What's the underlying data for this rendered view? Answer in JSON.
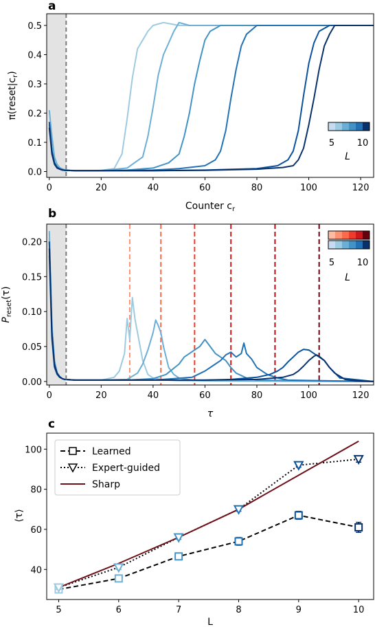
{
  "chart_data": [
    {
      "panel": "a",
      "type": "line",
      "title": "",
      "xlabel": "Counter c_r",
      "ylabel": "π(reset|c_r)",
      "xlim": [
        -1,
        125
      ],
      "ylim": [
        -0.02,
        0.54
      ],
      "xticks": [
        0,
        20,
        40,
        60,
        80,
        100,
        120
      ],
      "yticks": [
        0.0,
        0.1,
        0.2,
        0.3,
        0.4,
        0.5
      ],
      "shaded_region": [
        -1,
        6.5
      ],
      "dashed_vline": 6.5,
      "colorbar": {
        "label": "L",
        "tick_labels": [
          "5",
          "10"
        ],
        "colors": [
          "#c6dbef",
          "#9ecae1",
          "#6baed6",
          "#4292c6",
          "#2171b5",
          "#08306b"
        ]
      },
      "series": [
        {
          "L": 5,
          "color": "#9ecae1",
          "x": [
            0,
            1,
            2,
            3,
            4,
            5,
            6,
            8,
            10,
            15,
            20,
            25,
            28,
            30,
            32,
            34,
            36,
            38,
            40,
            44,
            50,
            60,
            125
          ],
          "y": [
            0.17,
            0.09,
            0.04,
            0.02,
            0.012,
            0.008,
            0.006,
            0.004,
            0.003,
            0.003,
            0.004,
            0.01,
            0.06,
            0.18,
            0.32,
            0.42,
            0.45,
            0.48,
            0.5,
            0.51,
            0.5,
            0.5,
            0.5
          ]
        },
        {
          "L": 6,
          "color": "#6baed6",
          "x": [
            0,
            1,
            2,
            3,
            4,
            5,
            6,
            8,
            10,
            20,
            30,
            36,
            38,
            40,
            42,
            44,
            46,
            48,
            50,
            54,
            60,
            125
          ],
          "y": [
            0.21,
            0.12,
            0.05,
            0.025,
            0.014,
            0.009,
            0.006,
            0.004,
            0.003,
            0.003,
            0.012,
            0.05,
            0.12,
            0.22,
            0.33,
            0.4,
            0.44,
            0.48,
            0.51,
            0.5,
            0.5,
            0.5
          ]
        },
        {
          "L": 7,
          "color": "#4292c6",
          "x": [
            0,
            1,
            2,
            3,
            4,
            5,
            6,
            10,
            20,
            30,
            40,
            46,
            50,
            52,
            54,
            56,
            58,
            60,
            62,
            66,
            70,
            125
          ],
          "y": [
            0.15,
            0.07,
            0.03,
            0.015,
            0.009,
            0.006,
            0.004,
            0.003,
            0.003,
            0.005,
            0.012,
            0.03,
            0.06,
            0.12,
            0.2,
            0.3,
            0.38,
            0.45,
            0.48,
            0.5,
            0.5,
            0.5
          ]
        },
        {
          "L": 8,
          "color": "#2171b5",
          "x": [
            0,
            1,
            2,
            3,
            4,
            5,
            6,
            10,
            20,
            40,
            50,
            60,
            64,
            66,
            68,
            70,
            72,
            74,
            76,
            80,
            90,
            125
          ],
          "y": [
            0.16,
            0.07,
            0.03,
            0.015,
            0.009,
            0.006,
            0.004,
            0.003,
            0.003,
            0.005,
            0.01,
            0.02,
            0.04,
            0.07,
            0.14,
            0.25,
            0.35,
            0.43,
            0.47,
            0.5,
            0.5,
            0.5
          ]
        },
        {
          "L": 9,
          "color": "#08519c",
          "x": [
            0,
            1,
            2,
            3,
            4,
            5,
            6,
            10,
            20,
            40,
            60,
            80,
            88,
            92,
            94,
            96,
            98,
            100,
            102,
            104,
            108,
            125
          ],
          "y": [
            0.17,
            0.07,
            0.03,
            0.015,
            0.009,
            0.006,
            0.004,
            0.003,
            0.003,
            0.003,
            0.005,
            0.01,
            0.02,
            0.04,
            0.07,
            0.14,
            0.26,
            0.37,
            0.44,
            0.48,
            0.5,
            0.5
          ]
        },
        {
          "L": 10,
          "color": "#08306b",
          "x": [
            0,
            1,
            2,
            3,
            4,
            5,
            6,
            10,
            20,
            40,
            60,
            80,
            90,
            94,
            96,
            98,
            100,
            102,
            104,
            106,
            108,
            110,
            125
          ],
          "y": [
            0.15,
            0.06,
            0.025,
            0.012,
            0.008,
            0.005,
            0.004,
            0.003,
            0.003,
            0.003,
            0.004,
            0.008,
            0.014,
            0.02,
            0.04,
            0.08,
            0.16,
            0.25,
            0.35,
            0.43,
            0.47,
            0.5,
            0.5
          ]
        }
      ]
    },
    {
      "panel": "b",
      "type": "line",
      "title": "",
      "xlabel": "τ",
      "ylabel": "P_reset(τ)",
      "xlim": [
        -1,
        125
      ],
      "ylim": [
        -0.005,
        0.225
      ],
      "xticks": [
        0,
        20,
        40,
        60,
        80,
        100,
        120
      ],
      "yticks": [
        0.0,
        0.05,
        0.1,
        0.15,
        0.2
      ],
      "shaded_region": [
        -1,
        6.5
      ],
      "dashed_vline": 6.5,
      "colorbar": {
        "label": "L",
        "tick_labels": [
          "5",
          "10"
        ],
        "colors_top": [
          "#fcbba1",
          "#fc9272",
          "#fb6a4a",
          "#ef3b2c",
          "#cb181d",
          "#67000d"
        ],
        "colors_bottom": [
          "#c6dbef",
          "#9ecae1",
          "#6baed6",
          "#4292c6",
          "#2171b5",
          "#08306b"
        ]
      },
      "reference_lines": [
        {
          "L": 5,
          "x": 31,
          "color": "#fc9272"
        },
        {
          "L": 6,
          "x": 43,
          "color": "#fb6a4a"
        },
        {
          "L": 7,
          "x": 56,
          "color": "#ef3b2c"
        },
        {
          "L": 8,
          "x": 70,
          "color": "#cb181d"
        },
        {
          "L": 9,
          "x": 87,
          "color": "#a50f15"
        },
        {
          "L": 10,
          "x": 104,
          "color": "#67000d"
        }
      ],
      "series": [
        {
          "L": 5,
          "color": "#9ecae1",
          "x": [
            0,
            1,
            2,
            3,
            4,
            5,
            6,
            8,
            10,
            15,
            20,
            25,
            27,
            29,
            30,
            31,
            32,
            33,
            34,
            35,
            36,
            38,
            40,
            45,
            50,
            125
          ],
          "y": [
            0.205,
            0.07,
            0.025,
            0.012,
            0.007,
            0.004,
            0.003,
            0.002,
            0.002,
            0.002,
            0.002,
            0.006,
            0.015,
            0.04,
            0.09,
            0.06,
            0.12,
            0.09,
            0.07,
            0.05,
            0.03,
            0.01,
            0.005,
            0.002,
            0.001,
            0.0
          ]
        },
        {
          "L": 6,
          "color": "#6baed6",
          "x": [
            0,
            1,
            2,
            3,
            4,
            5,
            6,
            10,
            20,
            30,
            34,
            36,
            38,
            40,
            41,
            42,
            43,
            44,
            45,
            46,
            48,
            50,
            55,
            60,
            125
          ],
          "y": [
            0.215,
            0.08,
            0.03,
            0.013,
            0.007,
            0.004,
            0.003,
            0.002,
            0.002,
            0.003,
            0.012,
            0.025,
            0.045,
            0.07,
            0.088,
            0.08,
            0.07,
            0.05,
            0.035,
            0.02,
            0.01,
            0.005,
            0.002,
            0.001,
            0.0
          ]
        },
        {
          "L": 7,
          "color": "#4292c6",
          "x": [
            0,
            1,
            2,
            3,
            4,
            5,
            6,
            10,
            20,
            30,
            40,
            45,
            50,
            52,
            54,
            56,
            58,
            60,
            62,
            64,
            66,
            68,
            70,
            72,
            76,
            80,
            125
          ],
          "y": [
            0.18,
            0.06,
            0.02,
            0.01,
            0.006,
            0.004,
            0.003,
            0.002,
            0.002,
            0.002,
            0.004,
            0.01,
            0.025,
            0.035,
            0.04,
            0.045,
            0.05,
            0.06,
            0.05,
            0.04,
            0.035,
            0.03,
            0.02,
            0.012,
            0.005,
            0.002,
            0.0
          ]
        },
        {
          "L": 8,
          "color": "#2171b5",
          "x": [
            0,
            1,
            2,
            3,
            4,
            5,
            6,
            10,
            20,
            40,
            55,
            60,
            64,
            66,
            68,
            70,
            72,
            74,
            75,
            76,
            78,
            80,
            82,
            84,
            88,
            92,
            125
          ],
          "y": [
            0.2,
            0.07,
            0.025,
            0.012,
            0.007,
            0.004,
            0.003,
            0.002,
            0.002,
            0.002,
            0.006,
            0.015,
            0.025,
            0.03,
            0.038,
            0.042,
            0.035,
            0.04,
            0.055,
            0.04,
            0.032,
            0.02,
            0.015,
            0.01,
            0.005,
            0.002,
            0.0
          ]
        },
        {
          "L": 9,
          "color": "#08519c",
          "x": [
            0,
            1,
            2,
            3,
            4,
            5,
            6,
            10,
            20,
            40,
            60,
            70,
            80,
            85,
            88,
            90,
            92,
            94,
            96,
            98,
            100,
            102,
            104,
            106,
            108,
            112,
            125
          ],
          "y": [
            0.2,
            0.07,
            0.025,
            0.012,
            0.007,
            0.004,
            0.003,
            0.002,
            0.002,
            0.002,
            0.002,
            0.003,
            0.006,
            0.01,
            0.015,
            0.02,
            0.028,
            0.035,
            0.042,
            0.046,
            0.045,
            0.04,
            0.035,
            0.03,
            0.02,
            0.005,
            0.0
          ]
        },
        {
          "L": 10,
          "color": "#08306b",
          "x": [
            0,
            1,
            2,
            3,
            4,
            5,
            6,
            10,
            20,
            40,
            60,
            80,
            90,
            94,
            96,
            98,
            100,
            102,
            103,
            104,
            106,
            108,
            110,
            114,
            118,
            125
          ],
          "y": [
            0.19,
            0.065,
            0.022,
            0.011,
            0.006,
            0.004,
            0.003,
            0.002,
            0.002,
            0.002,
            0.002,
            0.003,
            0.006,
            0.01,
            0.015,
            0.022,
            0.03,
            0.036,
            0.038,
            0.036,
            0.03,
            0.02,
            0.012,
            0.003,
            0.001,
            0.0
          ]
        }
      ]
    },
    {
      "panel": "c",
      "type": "line",
      "title": "",
      "xlabel": "L",
      "ylabel": "⟨τ⟩",
      "xlim": [
        4.8,
        10.25
      ],
      "ylim": [
        25,
        108
      ],
      "xticks": [
        5,
        6,
        7,
        8,
        9,
        10
      ],
      "yticks": [
        40,
        60,
        80,
        100
      ],
      "legend": {
        "placement": "upper-left",
        "entries": [
          "Learned",
          "Expert-guided",
          "Sharp"
        ]
      },
      "x": [
        5,
        6,
        7,
        8,
        9,
        10
      ],
      "marker_colors": [
        "#9ecae1",
        "#6baed6",
        "#4292c6",
        "#2171b5",
        "#08519c",
        "#08306b"
      ],
      "series": [
        {
          "name": "Learned",
          "style": "dashed",
          "marker": "square",
          "y": [
            30,
            35.5,
            46.5,
            54,
            67,
            61
          ],
          "err": [
            1,
            1,
            1,
            2,
            2,
            2.5
          ]
        },
        {
          "name": "Expert-guided",
          "style": "dotted",
          "marker": "triangle-down",
          "y": [
            31,
            41,
            56,
            70,
            92,
            95
          ],
          "err": [
            1,
            1,
            1,
            1,
            1,
            1.5
          ]
        },
        {
          "name": "Sharp",
          "style": "solid",
          "color": "#6e0f17",
          "y": [
            31,
            43,
            56,
            70,
            87,
            104
          ]
        }
      ]
    }
  ],
  "panel_labels": {
    "a": "a",
    "b": "b",
    "c": "c"
  },
  "axis_text": {
    "a_x": "Counter c",
    "a_x_sub": "r",
    "a_y_pre": "π(reset|c",
    "a_y_sub": "r",
    "a_y_post": ")",
    "b_x": "τ",
    "b_y_main": "P",
    "b_y_sub": "reset",
    "b_y_post": "(τ)",
    "c_x": "L",
    "c_y": "⟨τ⟩",
    "cbar_label": "L",
    "cbar_lo": "5",
    "cbar_hi": "10"
  },
  "legend_labels": [
    "Learned",
    "Expert-guided",
    "Sharp"
  ]
}
